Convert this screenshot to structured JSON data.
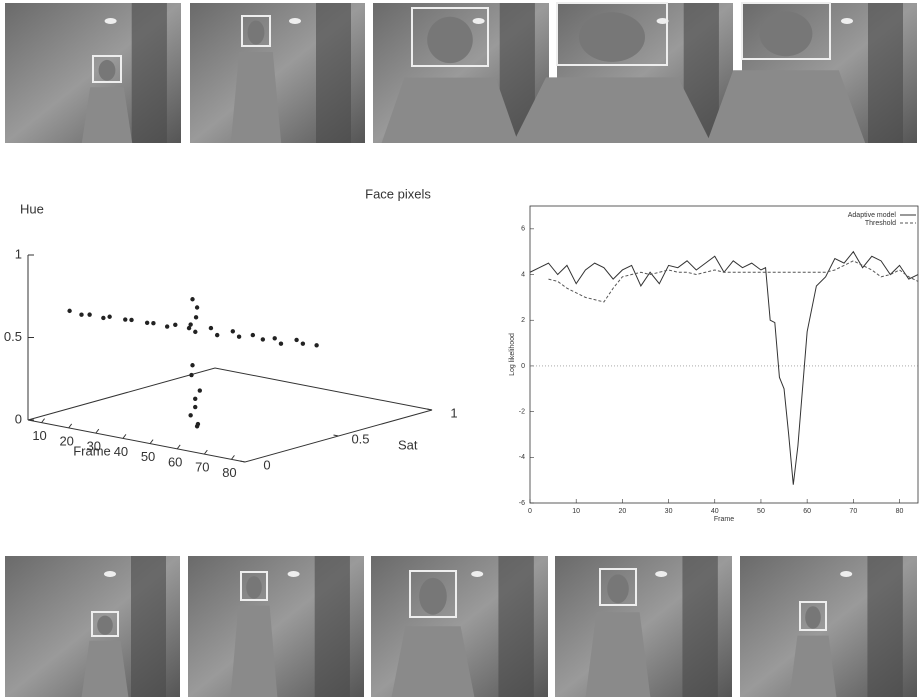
{
  "chart_data": [
    {
      "type": "scatter3d",
      "title": "Face pixels",
      "xlabel": "Frame",
      "ylabel": "Sat",
      "zlabel": "Hue",
      "xlim": [
        5,
        85
      ],
      "ylim": [
        0,
        1
      ],
      "zlim": [
        0,
        1
      ],
      "xticks": [
        10,
        20,
        30,
        40,
        50,
        60,
        70,
        80
      ],
      "yticks": [
        0,
        0.5,
        1
      ],
      "zticks": [
        0,
        0.5,
        1
      ],
      "color": "#222222",
      "x": [
        10,
        13,
        16,
        19,
        22,
        25,
        28,
        31,
        34,
        37,
        40,
        43,
        46,
        49,
        52,
        55,
        58,
        61,
        64,
        67,
        70,
        73,
        76,
        79,
        56,
        57,
        58,
        56,
        57,
        58,
        57,
        56,
        58,
        57,
        56,
        57
      ],
      "y": [
        0.15,
        0.17,
        0.17,
        0.2,
        0.19,
        0.23,
        0.22,
        0.26,
        0.25,
        0.28,
        0.28,
        0.31,
        0.3,
        0.34,
        0.33,
        0.37,
        0.36,
        0.39,
        0.4,
        0.42,
        0.41,
        0.45,
        0.44,
        0.47,
        0.14,
        0.15,
        0.13,
        0.14,
        0.12,
        0.15,
        0.14,
        0.13,
        0.14,
        0.15,
        0.13,
        0.14
      ],
      "z": [
        0.63,
        0.61,
        0.62,
        0.6,
        0.62,
        0.6,
        0.61,
        0.59,
        0.6,
        0.58,
        0.6,
        0.58,
        0.57,
        0.59,
        0.56,
        0.58,
        0.56,
        0.57,
        0.55,
        0.56,
        0.54,
        0.56,
        0.55,
        0.54,
        0.85,
        0.8,
        0.75,
        0.45,
        0.4,
        0.3,
        0.2,
        0.15,
        0.1,
        0.08,
        0.7,
        0.25
      ]
    },
    {
      "type": "line",
      "xlabel": "Frame",
      "ylabel": "Log likelihood",
      "xlim": [
        0,
        84
      ],
      "ylim": [
        -6,
        7
      ],
      "xticks": [
        0,
        10,
        20,
        30,
        40,
        50,
        60,
        70,
        80
      ],
      "yticks": [
        -6,
        -4,
        -2,
        0,
        2,
        4,
        6
      ],
      "zero_line": true,
      "legend": "upper right",
      "x": [
        0,
        2,
        4,
        6,
        8,
        10,
        12,
        14,
        16,
        18,
        20,
        22,
        24,
        26,
        28,
        30,
        32,
        34,
        36,
        38,
        40,
        42,
        44,
        46,
        48,
        50,
        51,
        52,
        53,
        54,
        55,
        56,
        57,
        58,
        59,
        60,
        62,
        64,
        66,
        68,
        70,
        72,
        74,
        76,
        78,
        80,
        82,
        84
      ],
      "series": [
        {
          "name": "Adaptive model",
          "color": "#333333",
          "dash": false,
          "values": [
            4.1,
            4.3,
            4.5,
            4.0,
            4.4,
            3.6,
            4.2,
            4.5,
            4.3,
            3.8,
            4.2,
            4.4,
            3.5,
            4.1,
            3.6,
            4.4,
            4.3,
            4.6,
            4.2,
            4.5,
            4.8,
            4.1,
            4.6,
            4.3,
            4.5,
            4.2,
            4.3,
            2.0,
            1.9,
            -0.5,
            -1.0,
            -3.0,
            -5.2,
            -3.5,
            -1.0,
            1.5,
            3.5,
            3.9,
            4.7,
            4.5,
            5.0,
            4.3,
            4.8,
            4.6,
            4.0,
            4.4,
            3.8,
            4.0
          ]
        },
        {
          "name": "Threshold",
          "color": "#555555",
          "dash": true,
          "values": [
            null,
            null,
            3.8,
            3.7,
            3.4,
            3.2,
            3.0,
            2.9,
            2.8,
            3.4,
            3.9,
            4.0,
            4.1,
            4.0,
            4.1,
            4.2,
            4.1,
            4.1,
            4.0,
            4.1,
            4.2,
            4.1,
            4.1,
            4.1,
            4.1,
            4.1,
            4.1,
            4.1,
            4.1,
            4.1,
            4.1,
            4.1,
            4.1,
            4.1,
            4.1,
            4.1,
            4.1,
            4.1,
            4.2,
            4.4,
            4.6,
            4.4,
            4.2,
            3.9,
            4.0,
            4.2,
            3.9,
            3.7
          ]
        }
      ]
    }
  ]
}
